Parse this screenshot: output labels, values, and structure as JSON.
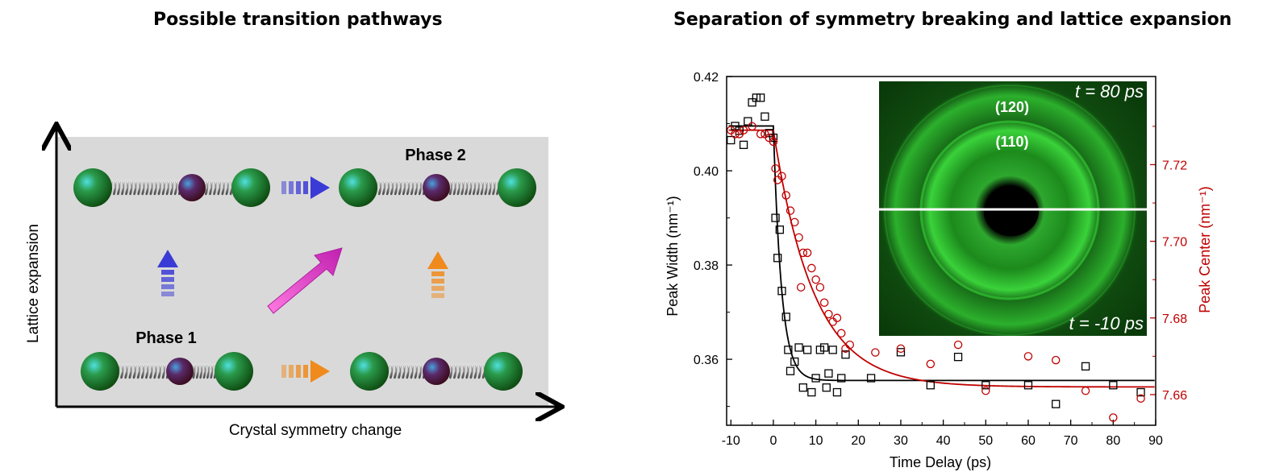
{
  "left_panel": {
    "title": "Possible transition pathways",
    "x_axis_label": "Crystal symmetry change",
    "y_axis_label": "Lattice expansion",
    "phase1_label": "Phase 1",
    "phase2_label": "Phase 2",
    "colors": {
      "background": "#d9d9d9",
      "blue_arrow": "#3a3ad6",
      "orange_arrow": "#f08a1c",
      "magenta_arrow": "#e830c8",
      "outer_atom": "#1e7a1e",
      "inner_atom": "#5a2a5a"
    }
  },
  "right_panel": {
    "title": "Separation of symmetry breaking and lattice expansion"
  },
  "chart_data": {
    "type": "scatter",
    "xlabel": "Time Delay (ps)",
    "ylabel": "Peak Width (nm⁻¹)",
    "y2label": "Peak Center (nm⁻¹)",
    "xlim": [
      -11,
      90
    ],
    "ylim": [
      0.346,
      0.42
    ],
    "y2lim": [
      7.652,
      7.743
    ],
    "x_ticks": [
      "-10",
      "0",
      "10",
      "20",
      "30",
      "40",
      "50",
      "60",
      "70",
      "80",
      "90"
    ],
    "y_ticks": [
      "0.36",
      "0.38",
      "0.40",
      "0.42"
    ],
    "y2_ticks": [
      "7.66",
      "7.68",
      "7.70",
      "7.72"
    ],
    "series": [
      {
        "axis": "left",
        "marker": "square",
        "color": "#000000",
        "points": [
          [
            -10,
            0.4065
          ],
          [
            -9,
            0.4095
          ],
          [
            -8,
            0.4085
          ],
          [
            -7,
            0.4055
          ],
          [
            -6,
            0.4105
          ],
          [
            -5,
            0.4145
          ],
          [
            -4,
            0.4155
          ],
          [
            -3,
            0.4155
          ],
          [
            -2,
            0.4115
          ],
          [
            -1,
            0.408
          ],
          [
            0,
            0.407
          ],
          [
            0.5,
            0.39
          ],
          [
            1,
            0.3815
          ],
          [
            1.5,
            0.3875
          ],
          [
            2,
            0.3745
          ],
          [
            3,
            0.369
          ],
          [
            3.5,
            0.362
          ],
          [
            4,
            0.3575
          ],
          [
            5,
            0.3595
          ],
          [
            6,
            0.3625
          ],
          [
            7,
            0.354
          ],
          [
            8,
            0.362
          ],
          [
            9,
            0.353
          ],
          [
            10,
            0.356
          ],
          [
            11,
            0.362
          ],
          [
            12,
            0.3625
          ],
          [
            12.5,
            0.354
          ],
          [
            13,
            0.357
          ],
          [
            14,
            0.362
          ],
          [
            15,
            0.353
          ],
          [
            16,
            0.356
          ],
          [
            17,
            0.361
          ],
          [
            23,
            0.356
          ],
          [
            30,
            0.3615
          ],
          [
            37,
            0.3545
          ],
          [
            43.5,
            0.3605
          ],
          [
            50,
            0.3545
          ],
          [
            60,
            0.3545
          ],
          [
            66.5,
            0.3505
          ],
          [
            73.5,
            0.3585
          ],
          [
            80,
            0.3545
          ],
          [
            86.5,
            0.353
          ]
        ]
      },
      {
        "axis": "right",
        "marker": "circle",
        "color": "#c00000",
        "points": [
          [
            -10,
            7.729
          ],
          [
            -9,
            7.728
          ],
          [
            -8,
            7.728
          ],
          [
            -7,
            7.729
          ],
          [
            -5,
            7.73
          ],
          [
            -3,
            7.728
          ],
          [
            -2,
            7.728
          ],
          [
            -1,
            7.727
          ],
          [
            0,
            7.726
          ],
          [
            0.5,
            7.719
          ],
          [
            1,
            7.716
          ],
          [
            2,
            7.717
          ],
          [
            3,
            7.712
          ],
          [
            4,
            7.708
          ],
          [
            5,
            7.705
          ],
          [
            6,
            7.701
          ],
          [
            6.5,
            7.688
          ],
          [
            7,
            7.697
          ],
          [
            8,
            7.697
          ],
          [
            9,
            7.693
          ],
          [
            10,
            7.69
          ],
          [
            11,
            7.688
          ],
          [
            12,
            7.684
          ],
          [
            13,
            7.681
          ],
          [
            14,
            7.679
          ],
          [
            15,
            7.68
          ],
          [
            16,
            7.676
          ],
          [
            17,
            7.672
          ],
          [
            18,
            7.673
          ],
          [
            24,
            7.671
          ],
          [
            30,
            7.672
          ],
          [
            37,
            7.668
          ],
          [
            43.5,
            7.673
          ],
          [
            50,
            7.661
          ],
          [
            60,
            7.67
          ],
          [
            66.5,
            7.669
          ],
          [
            73.5,
            7.661
          ],
          [
            80,
            7.654
          ],
          [
            86.5,
            7.659
          ]
        ]
      }
    ],
    "fits": [
      {
        "axis": "left",
        "color": "#000000",
        "baseline": 0.4095,
        "t0": 0,
        "final": 0.3555,
        "tau": 1.9
      },
      {
        "axis": "right",
        "color": "#c00000",
        "baseline": 7.729,
        "t0": 0,
        "final": 7.662,
        "tau": 9.5
      }
    ],
    "inset": {
      "top_label": "t = 80 ps",
      "bottom_label": "t = -10 ps",
      "ring_labels": [
        "(120)",
        "(110)"
      ],
      "colors": {
        "background": "#0a3a0a",
        "ring": "#38d638",
        "center": "#000000",
        "divider": "#ffffff"
      }
    }
  }
}
